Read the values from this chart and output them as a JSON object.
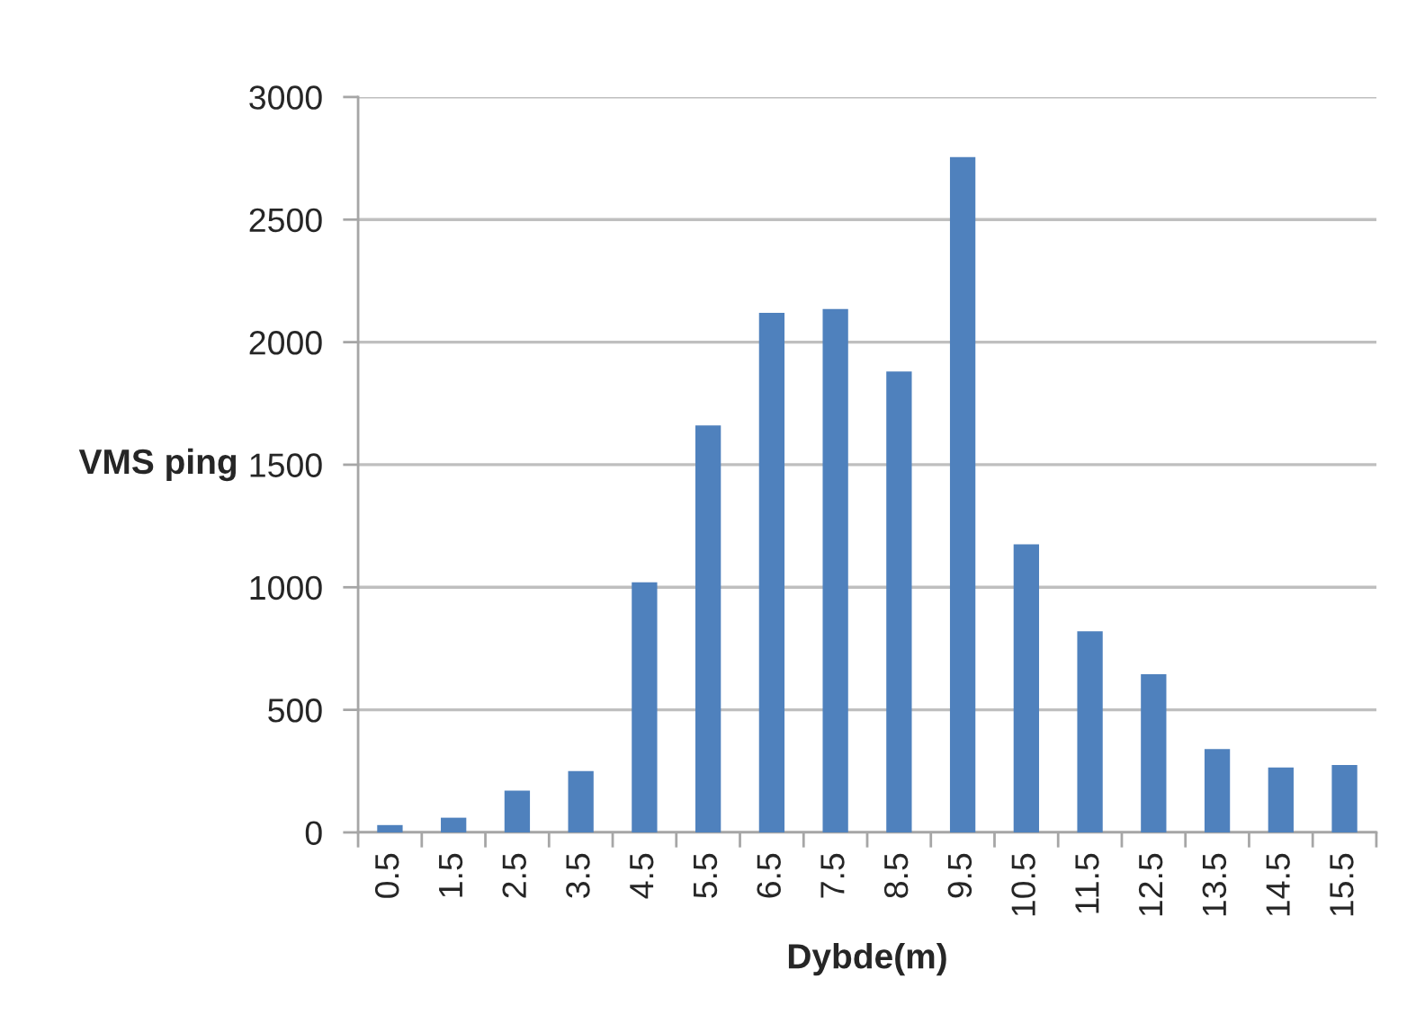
{
  "chart_data": {
    "type": "bar",
    "xlabel": "Dybde(m)",
    "ylabel": "VMS ping",
    "categories": [
      "0.5",
      "1.5",
      "2.5",
      "3.5",
      "4.5",
      "5.5",
      "6.5",
      "7.5",
      "8.5",
      "9.5",
      "10.5",
      "11.5",
      "12.5",
      "13.5",
      "14.5",
      "15.5"
    ],
    "values": [
      30,
      60,
      170,
      250,
      1020,
      1660,
      2120,
      2135,
      1880,
      2755,
      1175,
      820,
      645,
      340,
      265,
      275
    ],
    "color": "#4f81bd",
    "ylim": [
      0,
      3000
    ],
    "yticks": [
      0,
      500,
      1000,
      1500,
      2000,
      2500,
      3000
    ],
    "grid": "y"
  }
}
